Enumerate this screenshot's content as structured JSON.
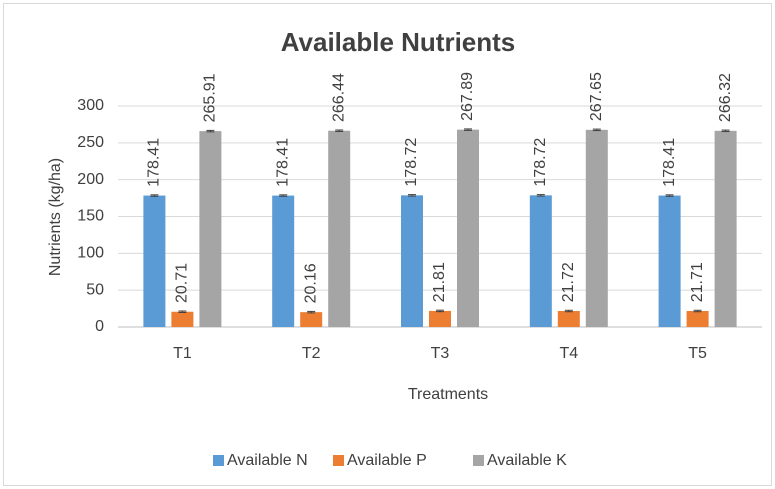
{
  "chart_data": {
    "type": "bar",
    "title": "Available Nutrients",
    "x_label": "Treatments",
    "y_label": "Nutrients (kg/ha)",
    "categories": [
      "T1",
      "T2",
      "T3",
      "T4",
      "T5"
    ],
    "series": [
      {
        "name": "Available N",
        "color": "#5b9bd5",
        "values": [
          178.41,
          178.41,
          178.72,
          178.72,
          178.41
        ],
        "errors": [
          1,
          1,
          1,
          1,
          1
        ]
      },
      {
        "name": "Available P",
        "color": "#ed7d31",
        "values": [
          20.71,
          20.16,
          21.81,
          21.72,
          21.71
        ],
        "errors": [
          1,
          1,
          1,
          1,
          1
        ]
      },
      {
        "name": "Available K",
        "color": "#a5a5a5",
        "values": [
          265.91,
          266.44,
          267.89,
          267.65,
          266.32
        ],
        "errors": [
          1,
          1,
          1,
          1,
          1
        ]
      }
    ],
    "ylim": [
      0,
      300
    ],
    "yticks": [
      0,
      50,
      100,
      150,
      200,
      250,
      300
    ],
    "grid": true,
    "legend": "bottom"
  }
}
